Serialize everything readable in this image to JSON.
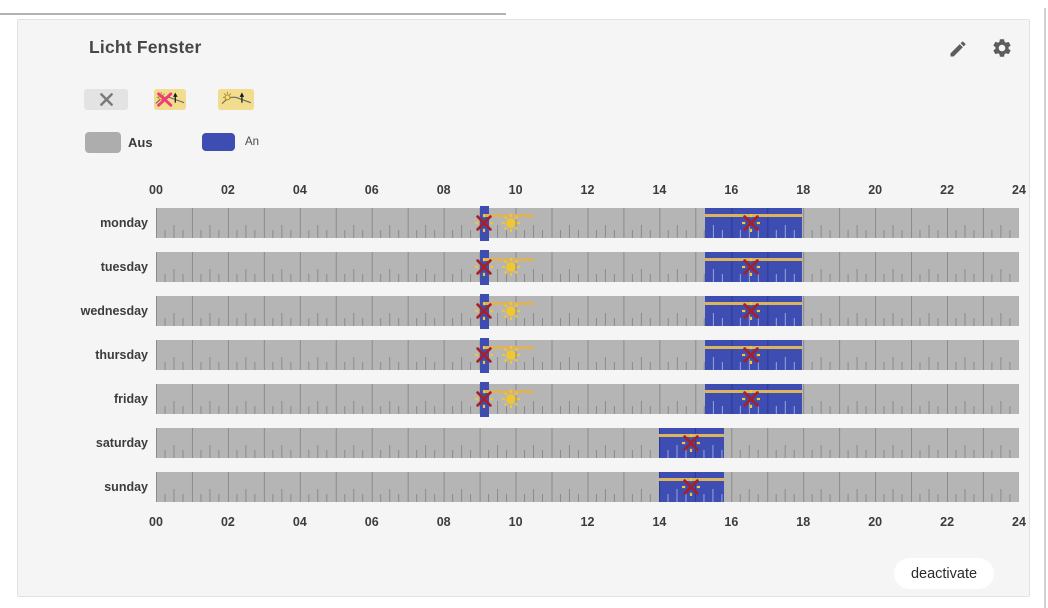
{
  "card": {
    "title": "Licht Fenster"
  },
  "header_icons": {
    "edit": "pencil-icon",
    "settings": "gear-icon"
  },
  "toolbar": {
    "buttons": [
      {
        "name": "clear",
        "icon": "x-icon"
      },
      {
        "name": "astro-crossed",
        "icon": "sun-horizon-crossed-icon"
      },
      {
        "name": "astro",
        "icon": "sun-horizon-icon"
      }
    ]
  },
  "legend": [
    {
      "label": "Aus",
      "color": "#adadad"
    },
    {
      "label": "An",
      "color": "#3d4db2"
    }
  ],
  "actions": {
    "deactivate_label": "deactivate"
  },
  "colors": {
    "bar_off": "#b5b5b5",
    "bar_on": "#3d4db2",
    "astro_line": "#ddb35c",
    "sun": "#f2c72e",
    "cross": "#a6202a"
  },
  "chart_data": {
    "type": "schedule-timeline",
    "x_axis": {
      "range_hours": [
        0,
        24
      ],
      "ticks": [
        "00",
        "02",
        "04",
        "06",
        "08",
        "10",
        "12",
        "14",
        "16",
        "18",
        "20",
        "22",
        "24"
      ]
    },
    "days": [
      {
        "label": "monday",
        "segments": [
          {
            "start": "09:00",
            "end": "09:15",
            "style": "pin"
          },
          {
            "start": "15:16",
            "end": "17:58"
          }
        ],
        "astro_lines": [
          {
            "from": "09:07",
            "to": "10:30"
          },
          {
            "from": "15:16",
            "to": "17:58"
          }
        ],
        "markers": [
          {
            "type": "sun-crossed",
            "at": "09:07"
          },
          {
            "type": "sun",
            "at": "09:52"
          },
          {
            "type": "sun-crossed",
            "at": "16:33"
          }
        ]
      },
      {
        "label": "tuesday",
        "segments": [
          {
            "start": "09:00",
            "end": "09:15",
            "style": "pin"
          },
          {
            "start": "15:16",
            "end": "17:58"
          }
        ],
        "astro_lines": [
          {
            "from": "09:07",
            "to": "10:30"
          },
          {
            "from": "15:16",
            "to": "17:58"
          }
        ],
        "markers": [
          {
            "type": "sun-crossed",
            "at": "09:07"
          },
          {
            "type": "sun",
            "at": "09:52"
          },
          {
            "type": "sun-crossed",
            "at": "16:33"
          }
        ]
      },
      {
        "label": "wednesday",
        "segments": [
          {
            "start": "09:00",
            "end": "09:15",
            "style": "pin"
          },
          {
            "start": "15:16",
            "end": "17:58"
          }
        ],
        "astro_lines": [
          {
            "from": "09:07",
            "to": "10:30"
          },
          {
            "from": "15:16",
            "to": "17:58"
          }
        ],
        "markers": [
          {
            "type": "sun-crossed",
            "at": "09:07"
          },
          {
            "type": "sun",
            "at": "09:52"
          },
          {
            "type": "sun-crossed",
            "at": "16:33"
          }
        ]
      },
      {
        "label": "thursday",
        "segments": [
          {
            "start": "09:00",
            "end": "09:15",
            "style": "pin"
          },
          {
            "start": "15:16",
            "end": "17:58"
          }
        ],
        "astro_lines": [
          {
            "from": "09:07",
            "to": "10:30"
          },
          {
            "from": "15:16",
            "to": "17:58"
          }
        ],
        "markers": [
          {
            "type": "sun-crossed",
            "at": "09:07"
          },
          {
            "type": "sun",
            "at": "09:52"
          },
          {
            "type": "sun-crossed",
            "at": "16:33"
          }
        ]
      },
      {
        "label": "friday",
        "segments": [
          {
            "start": "09:00",
            "end": "09:15",
            "style": "pin"
          },
          {
            "start": "15:16",
            "end": "17:58"
          }
        ],
        "astro_lines": [
          {
            "from": "09:07",
            "to": "10:30"
          },
          {
            "from": "15:16",
            "to": "17:58"
          }
        ],
        "markers": [
          {
            "type": "sun-crossed",
            "at": "09:07"
          },
          {
            "type": "sun",
            "at": "09:52"
          },
          {
            "type": "sun-crossed",
            "at": "16:33"
          }
        ]
      },
      {
        "label": "saturday",
        "segments": [
          {
            "start": "14:00",
            "end": "15:47"
          }
        ],
        "astro_lines": [
          {
            "from": "14:00",
            "to": "15:47"
          }
        ],
        "markers": [
          {
            "type": "sun-crossed",
            "at": "14:53"
          }
        ]
      },
      {
        "label": "sunday",
        "segments": [
          {
            "start": "14:00",
            "end": "15:47"
          }
        ],
        "astro_lines": [
          {
            "from": "14:00",
            "to": "15:47"
          }
        ],
        "markers": [
          {
            "type": "sun-crossed",
            "at": "14:53"
          }
        ]
      }
    ]
  }
}
